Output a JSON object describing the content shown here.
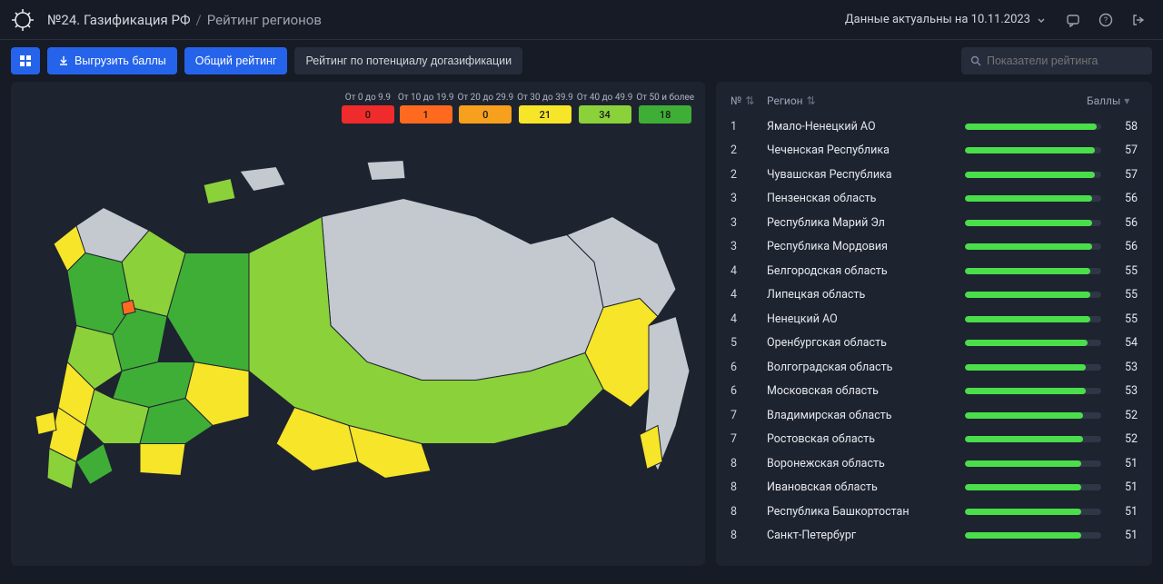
{
  "header": {
    "title_main": "№24. Газификация РФ",
    "title_sub": "Рейтинг регионов",
    "data_status": "Данные актуальны на 10.11.2023"
  },
  "toolbar": {
    "export_label": "Выгрузить баллы",
    "tab_overall": "Общий рейтинг",
    "tab_potential": "Рейтинг по потенциалу догазификации",
    "search_placeholder": "Показатели рейтинга"
  },
  "legend": {
    "items": [
      {
        "label": "От 0 до 9.9",
        "color": "#ef2b2b",
        "count": 0
      },
      {
        "label": "От 10 до 19.9",
        "color": "#ff6a1f",
        "count": 1
      },
      {
        "label": "От 20 до 29.9",
        "color": "#f7a01e",
        "count": 0
      },
      {
        "label": "От 30 до 39.9",
        "color": "#f6e528",
        "count": 21
      },
      {
        "label": "От 40 до 49.9",
        "color": "#8bd13a",
        "count": 34
      },
      {
        "label": "От 50 и более",
        "color": "#3fae36",
        "count": 18
      }
    ],
    "map_nodata_color": "#c4c8cf",
    "map_stroke": "#1e2330"
  },
  "table": {
    "col_rank": "№",
    "col_region": "Регион",
    "col_score": "Баллы",
    "bar_color": "#4ade4a",
    "max_score": 60,
    "rows": [
      {
        "rank": 1,
        "region": "Ямало-Ненецкий АО",
        "score": 58
      },
      {
        "rank": 2,
        "region": "Чеченская Республика",
        "score": 57
      },
      {
        "rank": 2,
        "region": "Чувашская Республика",
        "score": 57
      },
      {
        "rank": 3,
        "region": "Пензенская область",
        "score": 56
      },
      {
        "rank": 3,
        "region": "Республика Марий Эл",
        "score": 56
      },
      {
        "rank": 3,
        "region": "Республика Мордовия",
        "score": 56
      },
      {
        "rank": 4,
        "region": "Белгородская область",
        "score": 55
      },
      {
        "rank": 4,
        "region": "Липецкая область",
        "score": 55
      },
      {
        "rank": 4,
        "region": "Ненецкий АО",
        "score": 55
      },
      {
        "rank": 5,
        "region": "Оренбургская область",
        "score": 54
      },
      {
        "rank": 6,
        "region": "Волгоградская область",
        "score": 53
      },
      {
        "rank": 6,
        "region": "Московская область",
        "score": 53
      },
      {
        "rank": 7,
        "region": "Владимирская область",
        "score": 52
      },
      {
        "rank": 7,
        "region": "Ростовская область",
        "score": 52
      },
      {
        "rank": 8,
        "region": "Воронежская область",
        "score": 51
      },
      {
        "rank": 8,
        "region": "Ивановская область",
        "score": 51
      },
      {
        "rank": 8,
        "region": "Республика Башкортостан",
        "score": 51
      },
      {
        "rank": 8,
        "region": "Санкт-Петербург",
        "score": 51
      }
    ]
  },
  "colors": {
    "bg": "#161b26",
    "panel": "#1e2330",
    "accent": "#2563eb",
    "text": "#e5e7eb",
    "muted": "#9aa2b4"
  }
}
